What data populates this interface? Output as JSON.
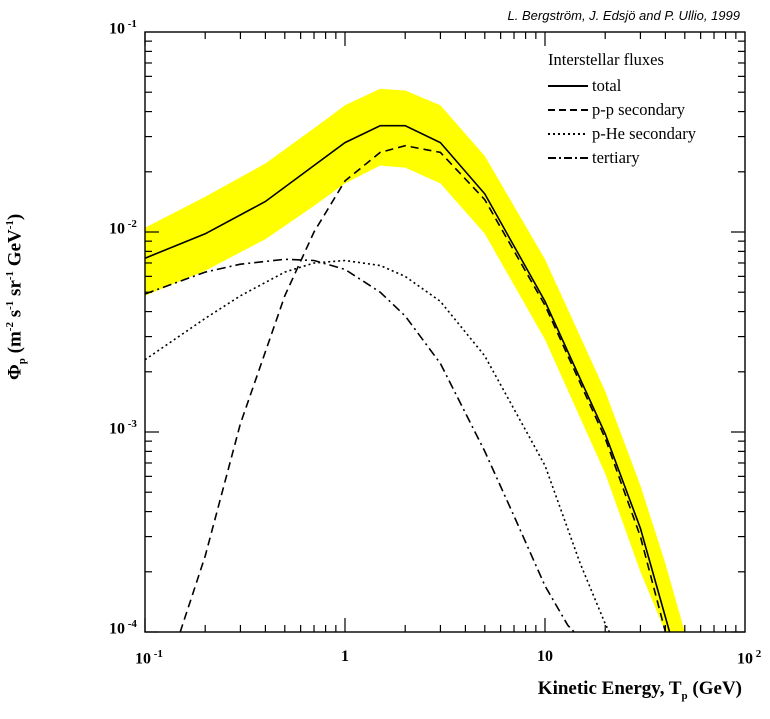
{
  "credit": "L. Bergström, J. Edsjö and P. Ullio, 1999",
  "legend_title": "Interstellar fluxes",
  "ylabel_parts": {
    "phi": "Φ",
    "p": "p",
    "m": "(m",
    "e1": "-2",
    "s": " s",
    "e2": "-1",
    "sr": " sr",
    "e3": "-1",
    "gev": " GeV",
    "e4": "-1",
    ")": ")"
  },
  "xlabel_parts": {
    "main": "Kinetic Energy, T",
    "sub": "p",
    "tail": " (GeV)"
  },
  "colors": {
    "band": "#ffff00",
    "line": "#000000"
  },
  "chart_data": {
    "type": "line",
    "title": "",
    "xlabel": "Kinetic Energy, T_p̄ (GeV)",
    "ylabel": "Φ_p̄ (m^-2 s^-1 sr^-1 GeV^-1)",
    "xscale": "log",
    "yscale": "log",
    "xlim": [
      0.1,
      100
    ],
    "ylim": [
      0.0001,
      0.1
    ],
    "xticks": [
      {
        "base": "10",
        "exp": "-1"
      },
      {
        "base": "1",
        "exp": ""
      },
      {
        "base": "10",
        "exp": ""
      },
      {
        "base": "10",
        "exp": "2"
      }
    ],
    "yticks": [
      {
        "base": "10",
        "exp": "-4"
      },
      {
        "base": "10",
        "exp": "-3"
      },
      {
        "base": "10",
        "exp": "-2"
      },
      {
        "base": "10",
        "exp": "-1"
      }
    ],
    "legend_position": "top-right",
    "band": {
      "x": [
        0.1,
        0.2,
        0.4,
        0.7,
        1.0,
        1.5,
        2.0,
        3.0,
        5.0,
        10.0,
        20.0,
        30.0,
        40.0,
        50.0
      ],
      "upper": [
        0.0105,
        0.015,
        0.022,
        0.033,
        0.043,
        0.052,
        0.051,
        0.043,
        0.024,
        0.0073,
        0.0016,
        0.00054,
        0.00022,
        0.0001
      ],
      "lower": [
        0.0048,
        0.0064,
        0.0092,
        0.0135,
        0.0175,
        0.0215,
        0.021,
        0.0175,
        0.0098,
        0.0029,
        0.00062,
        0.0002,
        0.0001,
        0.0001
      ]
    },
    "series": [
      {
        "name": "total",
        "dash": "solid",
        "x": [
          0.1,
          0.2,
          0.4,
          0.7,
          1.0,
          1.5,
          2.0,
          3.0,
          5.0,
          10.0,
          20.0,
          30.0,
          42.0
        ],
        "y": [
          0.0074,
          0.0098,
          0.0142,
          0.0215,
          0.028,
          0.034,
          0.034,
          0.028,
          0.0155,
          0.0045,
          0.00098,
          0.00033,
          0.0001
        ]
      },
      {
        "name": "p-p secondary",
        "dash": "dashed",
        "x": [
          0.15,
          0.2,
          0.3,
          0.5,
          0.7,
          1.0,
          1.5,
          2.0,
          3.0,
          5.0,
          10.0,
          20.0,
          30.0,
          40.0
        ],
        "y": [
          0.0001,
          0.00024,
          0.0011,
          0.0048,
          0.01,
          0.018,
          0.025,
          0.027,
          0.025,
          0.0145,
          0.0043,
          0.00093,
          0.0003,
          0.0001
        ]
      },
      {
        "name": "p-He secondary",
        "dash": "dotted",
        "x": [
          0.1,
          0.2,
          0.3,
          0.5,
          0.7,
          1.0,
          1.5,
          2.0,
          3.0,
          5.0,
          10.0,
          15.0,
          20.0,
          21.0
        ],
        "y": [
          0.0023,
          0.0037,
          0.0048,
          0.0063,
          0.007,
          0.0072,
          0.0068,
          0.006,
          0.0045,
          0.0024,
          0.00068,
          0.00022,
          0.00011,
          0.0001
        ]
      },
      {
        "name": "tertiary",
        "dash": "dashdot",
        "x": [
          0.1,
          0.2,
          0.3,
          0.5,
          0.7,
          1.0,
          1.5,
          2.0,
          3.0,
          5.0,
          7.0,
          10.0,
          13.0,
          14.0
        ],
        "y": [
          0.0049,
          0.0063,
          0.0069,
          0.0073,
          0.0072,
          0.0065,
          0.005,
          0.0038,
          0.0022,
          0.0008,
          0.00038,
          0.00017,
          0.000108,
          0.0001
        ]
      }
    ]
  }
}
